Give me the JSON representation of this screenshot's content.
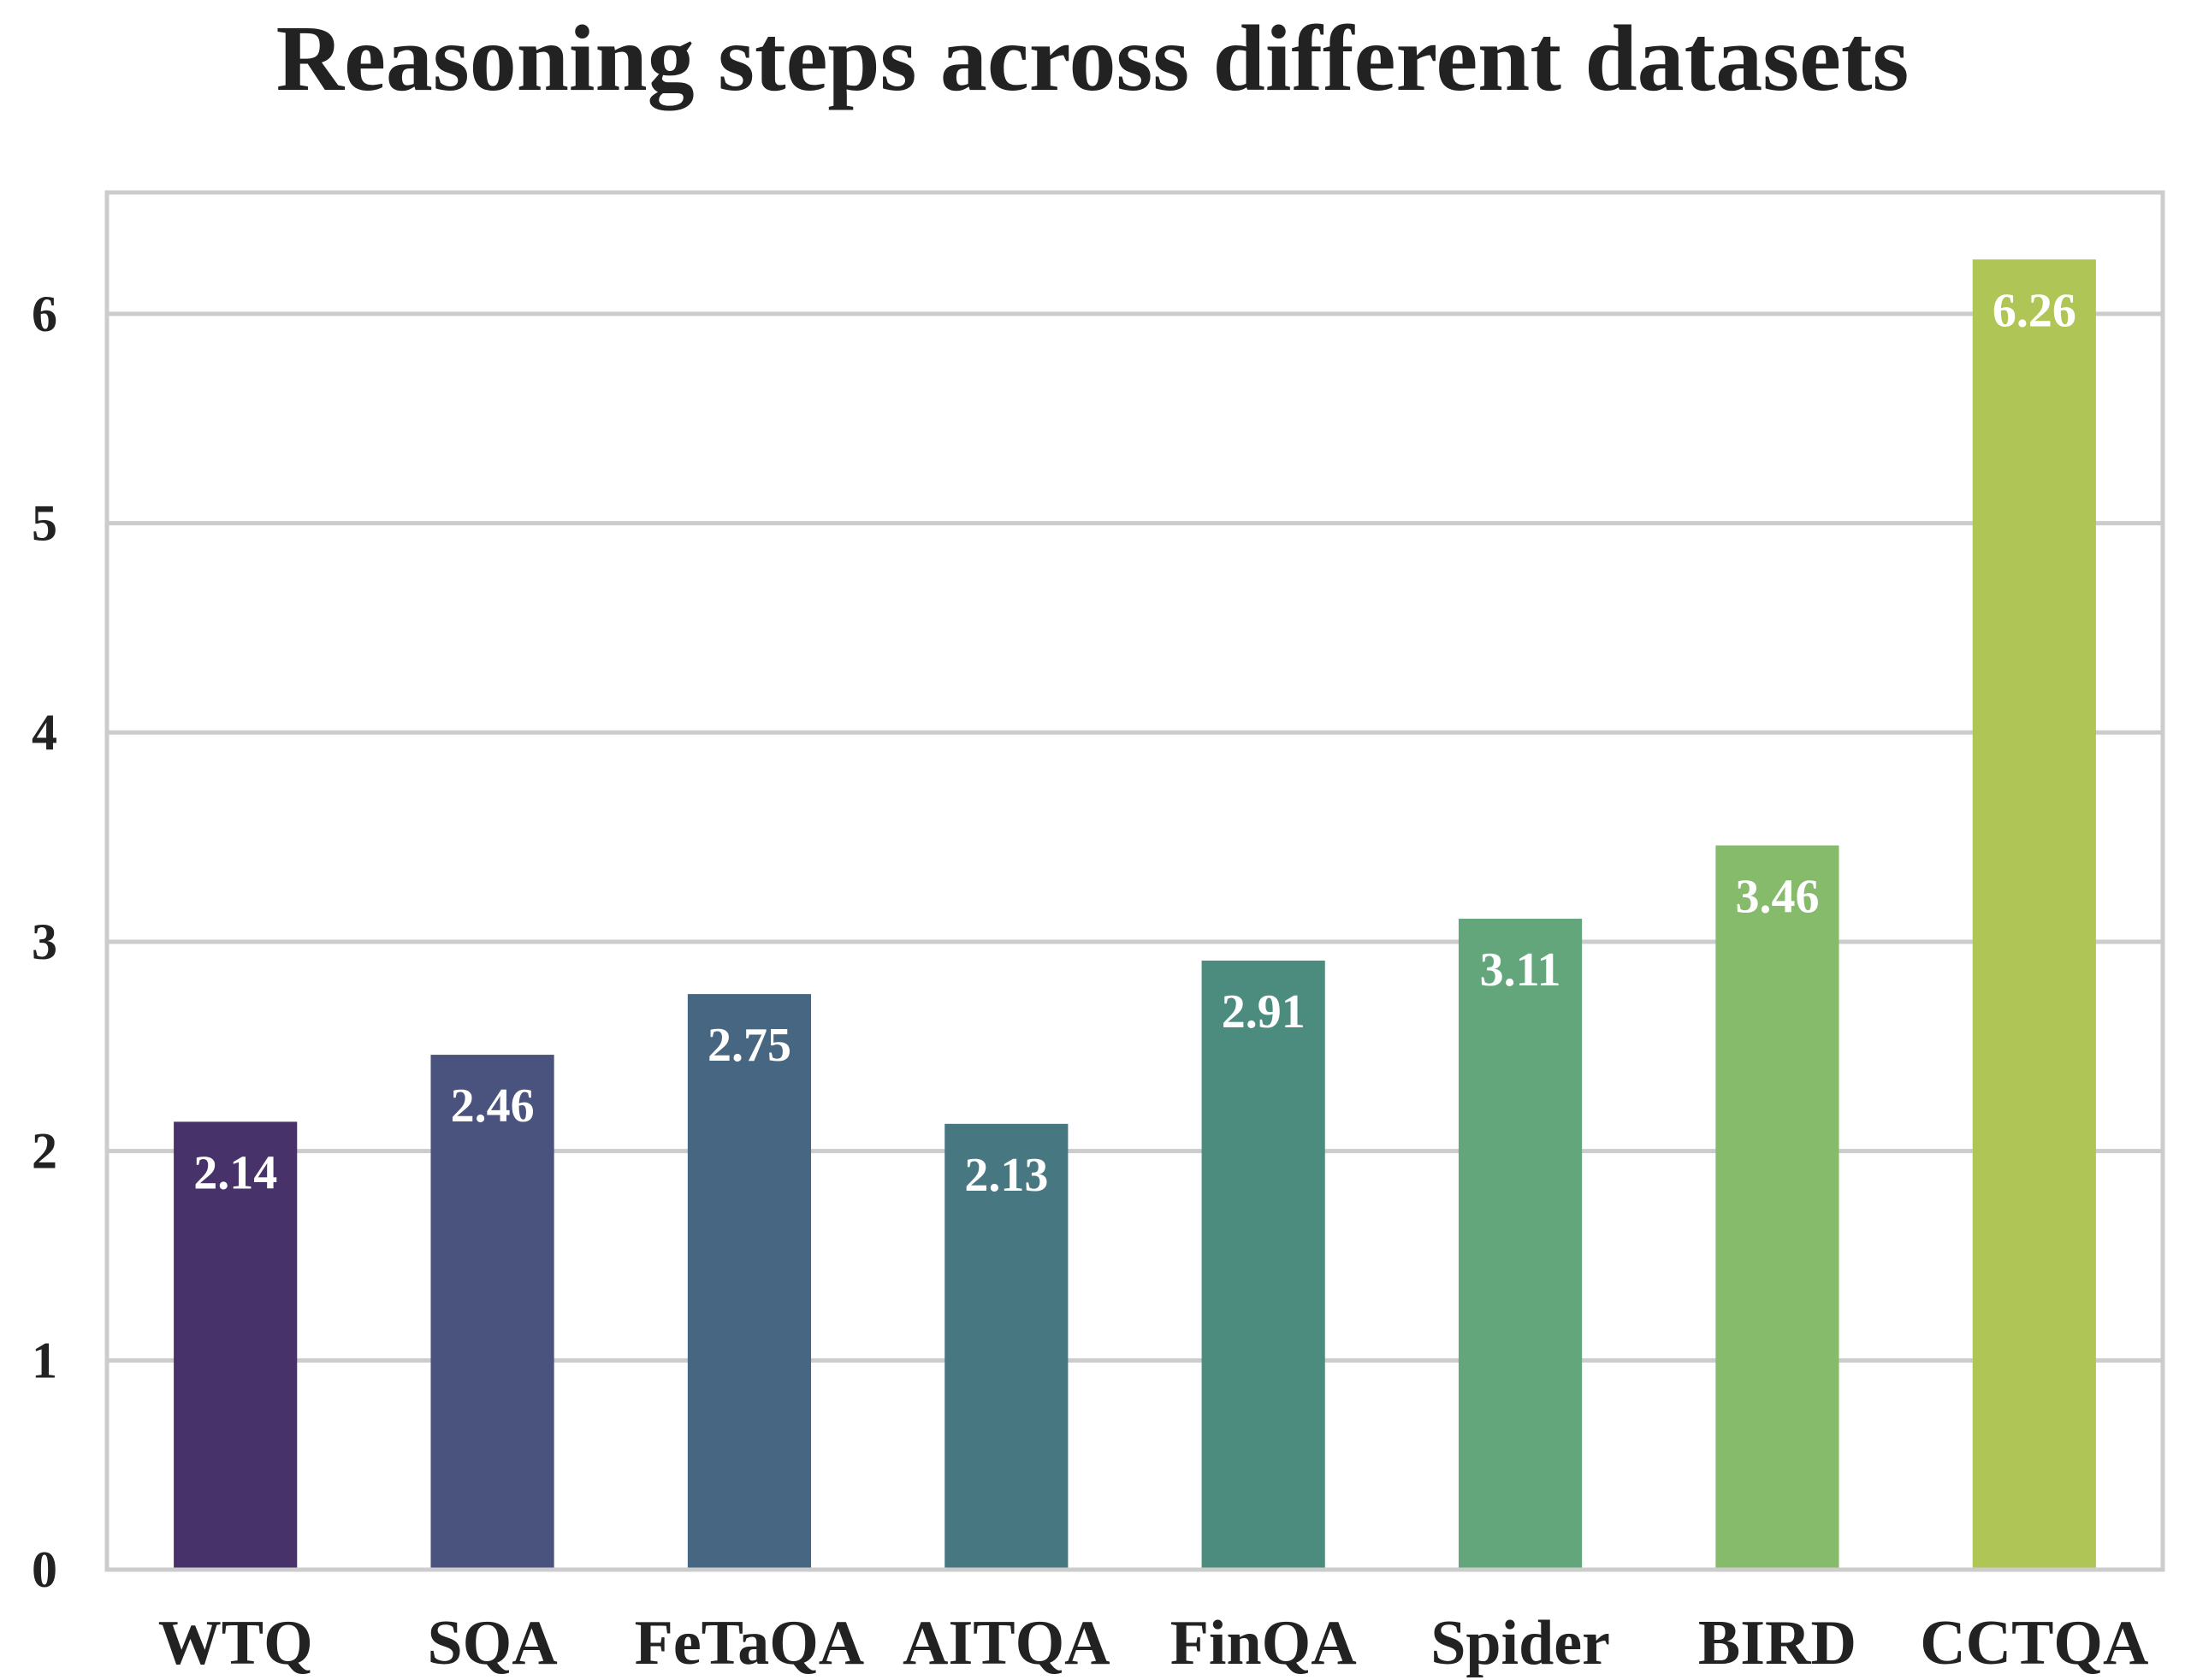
{
  "chart_data": {
    "type": "bar",
    "title": "Reasoning steps across different datasets",
    "xlabel": "",
    "ylabel": "",
    "categories": [
      "WTQ",
      "SQA",
      "FeTaQA",
      "AITQA",
      "FinQA",
      "Spider",
      "BIRD",
      "CCTQA"
    ],
    "values": [
      2.14,
      2.46,
      2.75,
      2.13,
      2.91,
      3.11,
      3.46,
      6.26
    ],
    "value_labels": [
      "2.14",
      "2.46",
      "2.75",
      "2.13",
      "2.91",
      "3.11",
      "3.46",
      "6.26"
    ],
    "colors": [
      "#48326a",
      "#4a527e",
      "#466681",
      "#477882",
      "#4c8c7e",
      "#63a67b",
      "#86bb6c",
      "#afc656"
    ],
    "yticks": [
      0,
      1,
      2,
      3,
      4,
      5,
      6
    ],
    "ylim": [
      0,
      6.58
    ],
    "grid": true,
    "legend": "none"
  }
}
